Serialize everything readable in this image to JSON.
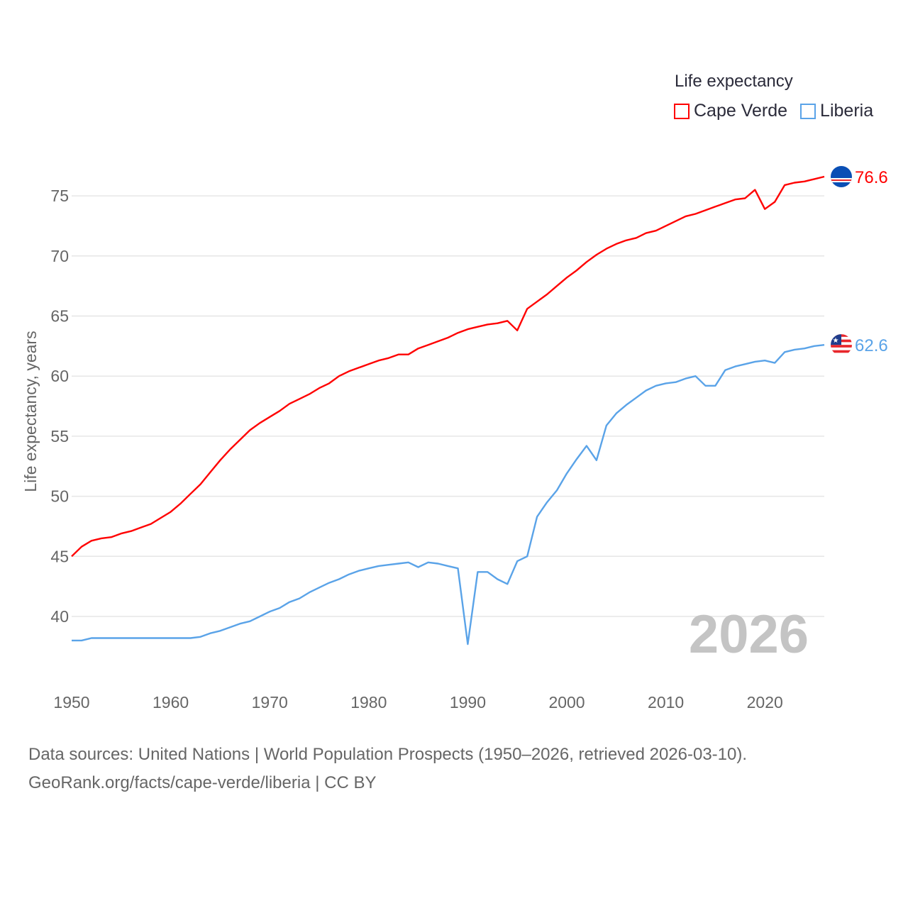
{
  "legend": {
    "title": "Life expectancy",
    "items": [
      {
        "label": "Cape Verde",
        "color": "#ff0000"
      },
      {
        "label": "Liberia",
        "color": "#5aa3e8"
      }
    ]
  },
  "year_watermark": "2026",
  "footer": {
    "line1": "Data sources: United Nations | World Population Prospects (1950–2026, retrieved 2026-03-10).",
    "line2": "GeoRank.org/facts/cape-verde/liberia | CC BY"
  },
  "chart_data": {
    "type": "line",
    "title": "",
    "xlabel": "",
    "ylabel": "Life expectancy, years",
    "xlim": [
      1950,
      2026
    ],
    "ylim": [
      36,
      78
    ],
    "x_ticks": [
      1950,
      1960,
      1970,
      1980,
      1990,
      2000,
      2010,
      2020
    ],
    "y_ticks": [
      40,
      45,
      50,
      55,
      60,
      65,
      70,
      75
    ],
    "grid": true,
    "legend_position": "top-right",
    "x_start": 1950,
    "series": [
      {
        "name": "Cape Verde",
        "color": "#ff0000",
        "end_label": "76.6",
        "values": [
          45.0,
          45.8,
          46.3,
          46.5,
          46.6,
          46.9,
          47.1,
          47.4,
          47.7,
          48.2,
          48.7,
          49.4,
          50.2,
          51.0,
          52.0,
          53.0,
          53.9,
          54.7,
          55.5,
          56.1,
          56.6,
          57.1,
          57.7,
          58.1,
          58.5,
          59.0,
          59.4,
          60.0,
          60.4,
          60.7,
          61.0,
          61.3,
          61.5,
          61.8,
          61.8,
          62.3,
          62.6,
          62.9,
          63.2,
          63.6,
          63.9,
          64.1,
          64.3,
          64.4,
          64.6,
          63.8,
          65.6,
          66.2,
          66.8,
          67.5,
          68.2,
          68.8,
          69.5,
          70.1,
          70.6,
          71.0,
          71.3,
          71.5,
          71.9,
          72.1,
          72.5,
          72.9,
          73.3,
          73.5,
          73.8,
          74.1,
          74.4,
          74.7,
          74.8,
          75.5,
          73.9,
          74.5,
          75.9,
          76.1,
          76.2,
          76.4,
          76.6
        ]
      },
      {
        "name": "Liberia",
        "color": "#5aa3e8",
        "end_label": "62.6",
        "values": [
          38.0,
          38.0,
          38.2,
          38.2,
          38.2,
          38.2,
          38.2,
          38.2,
          38.2,
          38.2,
          38.2,
          38.2,
          38.2,
          38.3,
          38.6,
          38.8,
          39.1,
          39.4,
          39.6,
          40.0,
          40.4,
          40.7,
          41.2,
          41.5,
          42.0,
          42.4,
          42.8,
          43.1,
          43.5,
          43.8,
          44.0,
          44.2,
          44.3,
          44.4,
          44.5,
          44.1,
          44.5,
          44.4,
          44.2,
          44.0,
          37.7,
          43.7,
          43.7,
          43.1,
          42.7,
          44.6,
          45.0,
          48.3,
          49.5,
          50.5,
          51.9,
          53.1,
          54.2,
          53.0,
          55.9,
          56.9,
          57.6,
          58.2,
          58.8,
          59.2,
          59.4,
          59.5,
          59.8,
          60.0,
          59.2,
          59.2,
          60.5,
          60.8,
          61.0,
          61.2,
          61.3,
          61.1,
          62.0,
          62.2,
          62.3,
          62.5,
          62.6
        ]
      }
    ]
  }
}
